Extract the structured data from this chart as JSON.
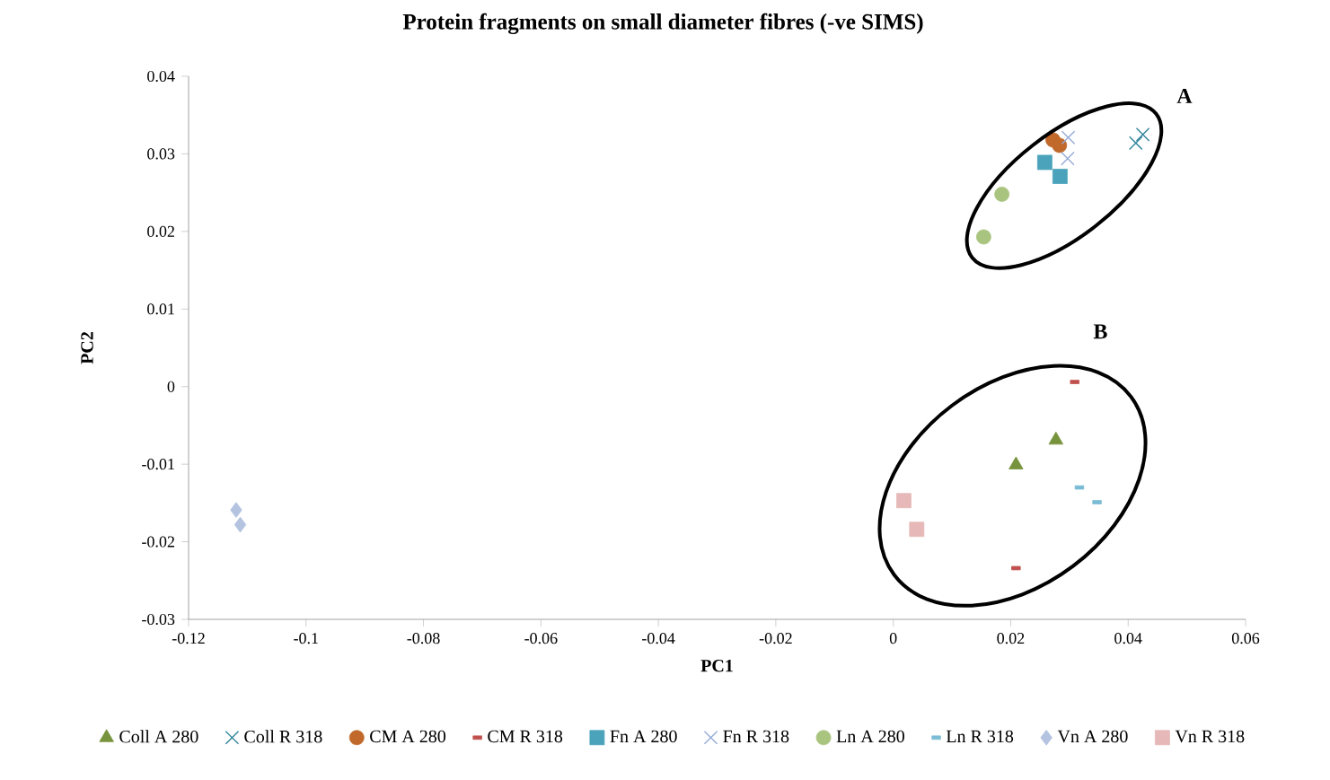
{
  "chart_data": {
    "type": "scatter",
    "title": "Protein fragments on small diameter fibres (-ve SIMS)",
    "xlabel": "PC1",
    "ylabel": "PC2",
    "xlim": [
      -0.12,
      0.06
    ],
    "ylim": [
      -0.03,
      0.04
    ],
    "xticks": [
      -0.12,
      -0.1,
      -0.08,
      -0.06,
      -0.04,
      -0.02,
      0,
      0.02,
      0.04,
      0.06
    ],
    "yticks": [
      -0.03,
      -0.02,
      -0.01,
      0,
      0.01,
      0.02,
      0.03,
      0.04
    ],
    "legend": "bottom",
    "grid": false,
    "annotations": [
      "A",
      "B"
    ],
    "series": [
      {
        "name": "Coll A 280",
        "color": "#77933c",
        "marker": "triangle",
        "x": [
          0.0209,
          0.0277
        ],
        "values": [
          -0.0101,
          -0.0069
        ]
      },
      {
        "name": "Coll R 318",
        "color": "#31859c",
        "marker": "cross",
        "x": [
          0.0413,
          0.0425
        ],
        "values": [
          0.0314,
          0.0325
        ]
      },
      {
        "name": "CM A 280",
        "color": "#c0692b",
        "marker": "circle",
        "x": [
          0.0272,
          0.0283
        ],
        "values": [
          0.0318,
          0.0311
        ]
      },
      {
        "name": "CM R 318",
        "color": "#c0504d",
        "x": [
          0.0309,
          0.0209
        ],
        "values": [
          0.0006,
          -0.0234
        ]
      },
      {
        "name": "Fn A 280",
        "color": "#4ba3bb",
        "marker": "square",
        "x": [
          0.0258,
          0.0284
        ],
        "values": [
          0.0289,
          0.0271
        ]
      },
      {
        "name": "Fn R 318",
        "color": "#95abd7",
        "marker": "cross",
        "x": [
          0.0298,
          0.0297
        ],
        "values": [
          0.0321,
          0.0294
        ]
      },
      {
        "name": "Ln A 280",
        "color": "#a9c47f",
        "marker": "circle",
        "x": [
          0.0185,
          0.0154
        ],
        "values": [
          0.0248,
          0.0193
        ]
      },
      {
        "name": "Ln R 318",
        "color": "#7bbcd5",
        "x": [
          0.0317,
          0.0347
        ],
        "values": [
          -0.013,
          -0.0149
        ]
      },
      {
        "name": "Vn A 280",
        "color": "#b3c3e0",
        "marker": "diamond",
        "x": [
          -0.1119,
          -0.1112
        ],
        "values": [
          -0.0159,
          -0.0178
        ]
      },
      {
        "name": "Vn R 318",
        "color": "#e6b9b8",
        "marker": "square",
        "x": [
          0.0018,
          0.004
        ],
        "values": [
          -0.0147,
          -0.0184
        ]
      }
    ]
  }
}
